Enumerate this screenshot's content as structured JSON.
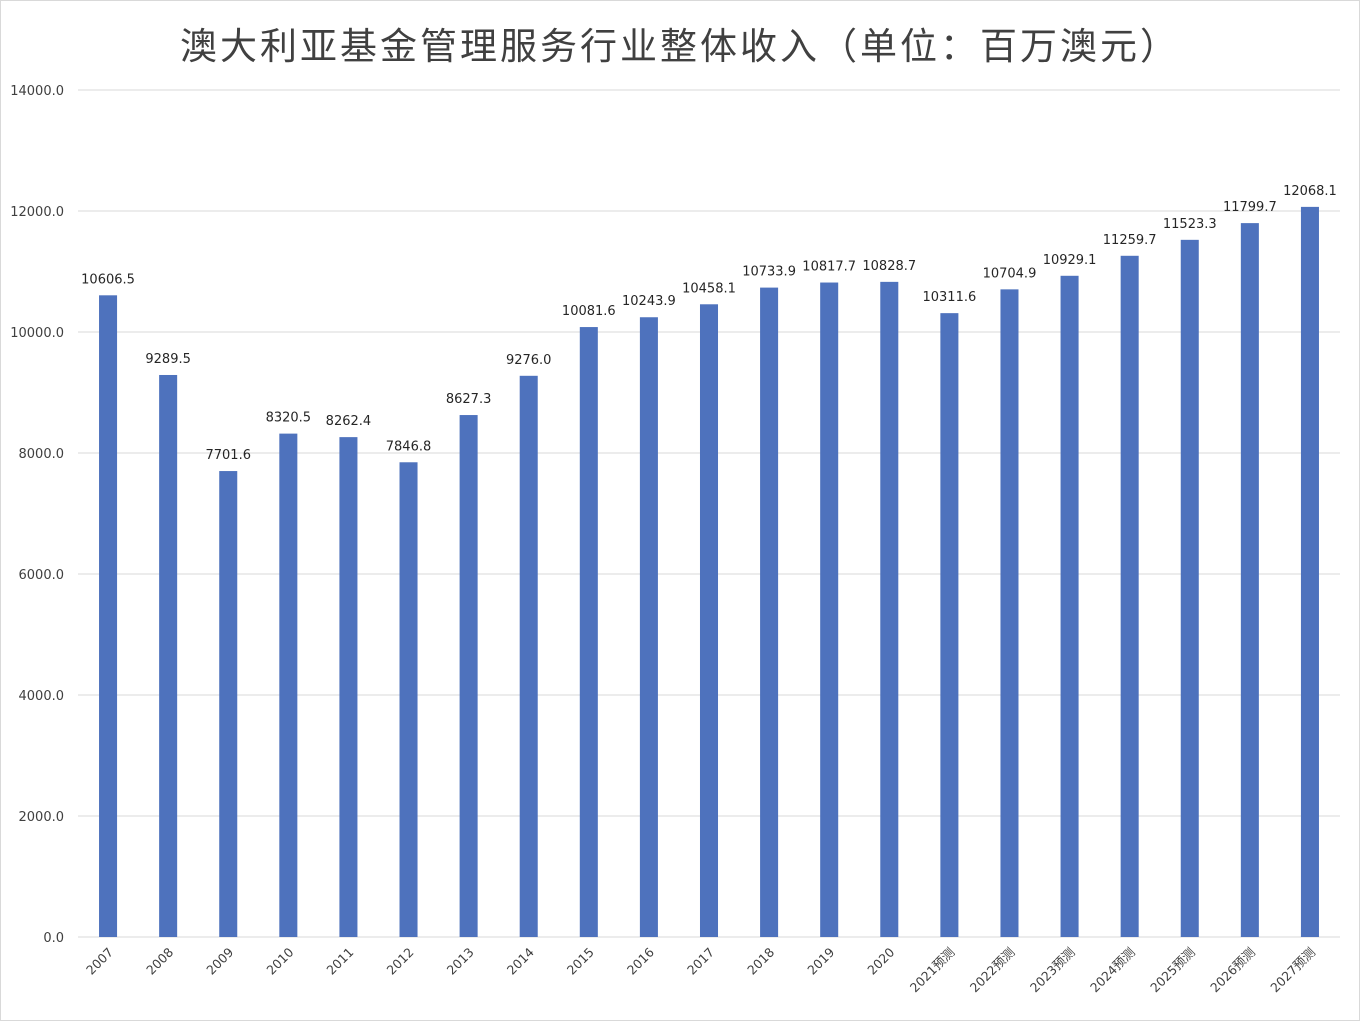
{
  "chart_data": {
    "type": "bar",
    "title": "澳大利亚基金管理服务行业整体收入（单位：百万澳元）",
    "xlabel": "",
    "ylabel": "",
    "categories": [
      "2007",
      "2008",
      "2009",
      "2010",
      "2011",
      "2012",
      "2013",
      "2014",
      "2015",
      "2016",
      "2017",
      "2018",
      "2019",
      "2020",
      "2021预测",
      "2022预测",
      "2023预测",
      "2024预测",
      "2025预测",
      "2026预测",
      "2027预测"
    ],
    "values": [
      10606.5,
      9289.5,
      7701.6,
      8320.5,
      8262.4,
      7846.8,
      8627.3,
      9276.0,
      10081.6,
      10243.9,
      10458.1,
      10733.9,
      10817.7,
      10828.7,
      10311.6,
      10704.9,
      10929.1,
      11259.7,
      11523.3,
      11799.7,
      12068.1
    ],
    "value_labels": [
      "10606.5",
      "9289.5",
      "7701.6",
      "8320.5",
      "8262.4",
      "7846.8",
      "8627.3",
      "9276.0",
      "10081.6",
      "10243.9",
      "10458.1",
      "10733.9",
      "10817.7",
      "10828.7",
      "10311.6",
      "10704.9",
      "10929.1",
      "11259.7",
      "11523.3",
      "11799.7",
      "12068.1"
    ],
    "y_ticks": [
      "0.0",
      "2000.0",
      "4000.0",
      "6000.0",
      "8000.0",
      "10000.0",
      "12000.0",
      "14000.0"
    ],
    "ylim": [
      0,
      14000
    ],
    "grid": true,
    "legend": "none",
    "bar_color": "#4e72bd",
    "grid_color": "#d9d9d9"
  }
}
